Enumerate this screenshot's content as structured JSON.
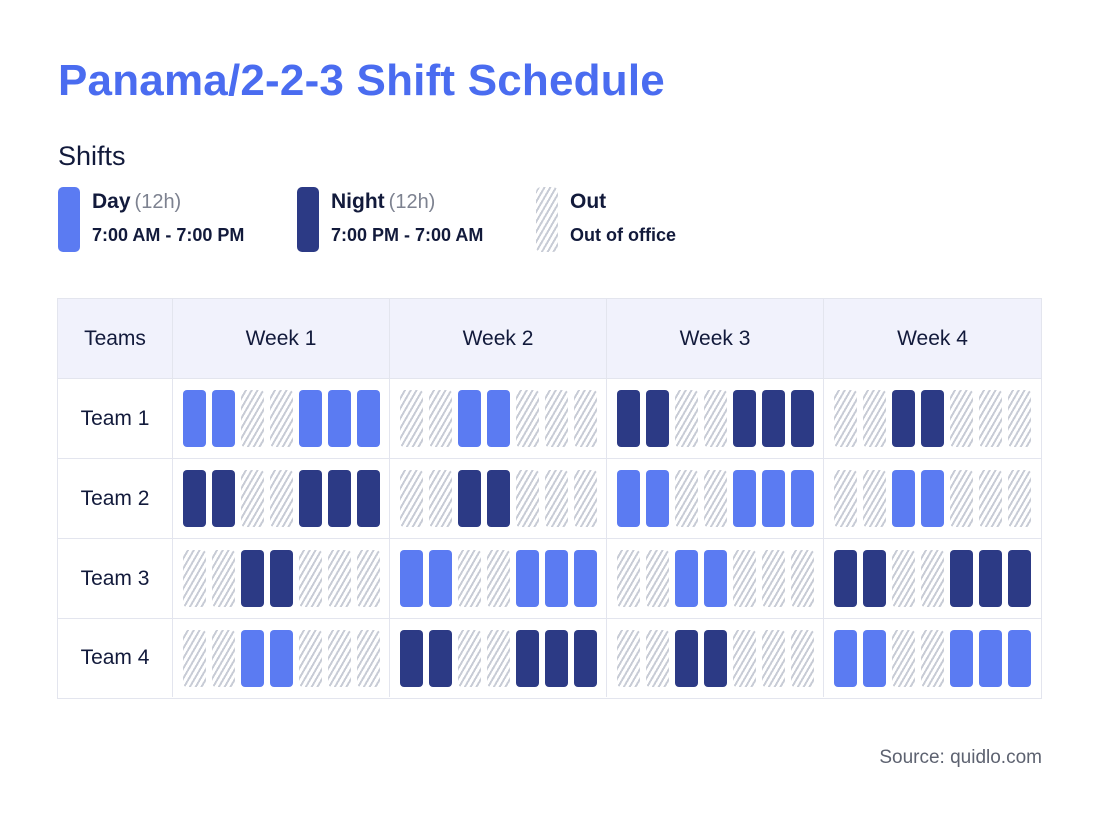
{
  "title": "Panama/2-2-3 Shift Schedule",
  "shifts_heading": "Shifts",
  "legend": [
    {
      "key": "day",
      "name": "Day",
      "duration": "(12h)",
      "time": "7:00 AM - 7:00 PM",
      "color": "#5b7bf2"
    },
    {
      "key": "night",
      "name": "Night",
      "duration": "(12h)",
      "time": "7:00 PM - 7:00 AM",
      "color": "#2c3a85"
    },
    {
      "key": "out",
      "name": "Out",
      "duration": "",
      "time": "Out of office",
      "color": "#c8ccd6"
    }
  ],
  "table": {
    "teams_header": "Teams",
    "weeks": [
      "Week 1",
      "Week 2",
      "Week 3",
      "Week 4"
    ],
    "teams": [
      {
        "name": "Team 1",
        "weeks": [
          [
            "day",
            "day",
            "out",
            "out",
            "day",
            "day",
            "day"
          ],
          [
            "out",
            "out",
            "day",
            "day",
            "out",
            "out",
            "out"
          ],
          [
            "night",
            "night",
            "out",
            "out",
            "night",
            "night",
            "night"
          ],
          [
            "out",
            "out",
            "night",
            "night",
            "out",
            "out",
            "out"
          ]
        ]
      },
      {
        "name": "Team 2",
        "weeks": [
          [
            "night",
            "night",
            "out",
            "out",
            "night",
            "night",
            "night"
          ],
          [
            "out",
            "out",
            "night",
            "night",
            "out",
            "out",
            "out"
          ],
          [
            "day",
            "day",
            "out",
            "out",
            "day",
            "day",
            "day"
          ],
          [
            "out",
            "out",
            "day",
            "day",
            "out",
            "out",
            "out"
          ]
        ]
      },
      {
        "name": "Team 3",
        "weeks": [
          [
            "out",
            "out",
            "night",
            "night",
            "out",
            "out",
            "out"
          ],
          [
            "day",
            "day",
            "out",
            "out",
            "day",
            "day",
            "day"
          ],
          [
            "out",
            "out",
            "day",
            "day",
            "out",
            "out",
            "out"
          ],
          [
            "night",
            "night",
            "out",
            "out",
            "night",
            "night",
            "night"
          ]
        ]
      },
      {
        "name": "Team 4",
        "weeks": [
          [
            "out",
            "out",
            "day",
            "day",
            "out",
            "out",
            "out"
          ],
          [
            "night",
            "night",
            "out",
            "out",
            "night",
            "night",
            "night"
          ],
          [
            "out",
            "out",
            "night",
            "night",
            "out",
            "out",
            "out"
          ],
          [
            "day",
            "day",
            "out",
            "out",
            "day",
            "day",
            "day"
          ]
        ]
      }
    ]
  },
  "source": "Source: quidlo.com"
}
